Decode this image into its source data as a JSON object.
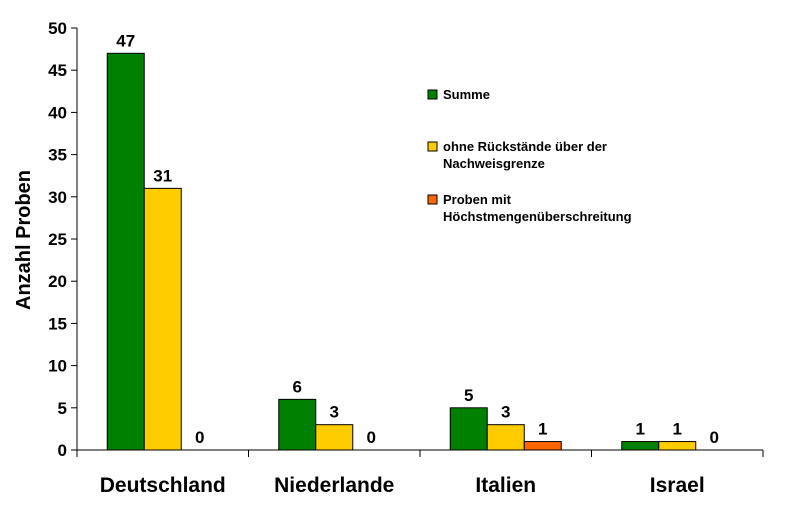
{
  "chart_data": {
    "type": "bar",
    "categories": [
      "Deutschland",
      "Niederlande",
      "Italien",
      "Israel"
    ],
    "series": [
      {
        "name": "Summe",
        "color": "#008000",
        "values": [
          47,
          6,
          5,
          1
        ]
      },
      {
        "name": "ohne Rückstände über der Nachweisgrenze",
        "color": "#FFCC00",
        "values": [
          31,
          3,
          3,
          1
        ]
      },
      {
        "name": "Proben mit Höchstmengenüberschreitung",
        "color": "#FF6600",
        "values": [
          0,
          0,
          1,
          0
        ]
      }
    ],
    "ylabel": "Anzahl Proben",
    "ylim": [
      0,
      50
    ],
    "yticks": [
      0,
      5,
      10,
      15,
      20,
      25,
      30,
      35,
      40,
      45,
      50
    ],
    "grid": false,
    "legend": "top-right"
  }
}
